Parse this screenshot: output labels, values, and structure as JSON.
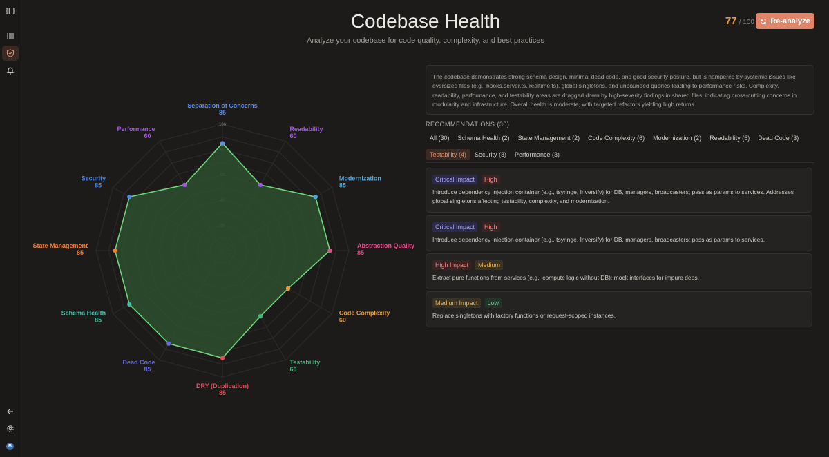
{
  "header": {
    "title": "Codebase Health",
    "subtitle": "Analyze your codebase for code quality, complexity, and best practices",
    "score": "77",
    "score_max": "/ 100",
    "reanalyze_label": "Re-analyze"
  },
  "rail": {
    "icons": [
      "sidebar-toggle-icon",
      "list-icon",
      "shield-icon",
      "bell-icon",
      "arrow-left-icon",
      "gear-icon"
    ],
    "avatar": "B"
  },
  "colors": {
    "accent": "#e0856a",
    "score": "#e49a3a",
    "radar_fill": "#2e4f2f",
    "radar_stroke": "#6fd67c"
  },
  "chart_data": {
    "type": "radar",
    "rlim": [
      0,
      100
    ],
    "ticks": [
      "20",
      "40",
      "60",
      "80",
      "100"
    ],
    "axes": [
      {
        "label": "Separation of Concerns",
        "value": 85,
        "color": "#5b8def"
      },
      {
        "label": "Readability",
        "value": 60,
        "color": "#a25be0"
      },
      {
        "label": "Modernization",
        "value": 85,
        "color": "#4fa9dd"
      },
      {
        "label": "Abstraction Quality",
        "value": 85,
        "color": "#e0508d"
      },
      {
        "label": "Code Complexity",
        "value": 60,
        "color": "#eb9a38"
      },
      {
        "label": "Testability",
        "value": 60,
        "color": "#41b878"
      },
      {
        "label": "DRY (Duplication)",
        "value": 85,
        "color": "#e54b5b"
      },
      {
        "label": "Dead Code",
        "value": 85,
        "color": "#6568e0"
      },
      {
        "label": "Schema Health",
        "value": 85,
        "color": "#3fbfa7"
      },
      {
        "label": "State Management",
        "value": 85,
        "color": "#ee7d34"
      },
      {
        "label": "Security",
        "value": 85,
        "color": "#4e86e6"
      },
      {
        "label": "Performance",
        "value": 60,
        "color": "#a157e0"
      }
    ]
  },
  "summary": "The codebase demonstrates strong schema design, minimal dead code, and good security posture, but is hampered by systemic issues like oversized files (e.g., hooks.server.ts, realtime.ts), global singletons, and unbounded queries leading to performance risks. Complexity, readability, performance, and testability areas are dragged down by high-severity findings in shared files, indicating cross-cutting concerns in modularity and infrastructure. Overall health is moderate, with targeted refactors yielding high returns.",
  "recommendations": {
    "heading": "RECOMMENDATIONS (30)",
    "filters": [
      {
        "label": "All (30)",
        "active": false
      },
      {
        "label": "Schema Health (2)",
        "active": false
      },
      {
        "label": "State Management (2)",
        "active": false
      },
      {
        "label": "Code Complexity (6)",
        "active": false
      },
      {
        "label": "Modernization (2)",
        "active": false
      },
      {
        "label": "Readability (5)",
        "active": false
      },
      {
        "label": "Dead Code (3)",
        "active": false
      },
      {
        "label": "Testability (4)",
        "active": true
      },
      {
        "label": "Security (3)",
        "active": false
      },
      {
        "label": "Performance (3)",
        "active": false
      }
    ],
    "cards": [
      {
        "impact": "Critical Impact",
        "impact_class": "critical",
        "priority": "High",
        "priority_class": "high",
        "text": "Introduce dependency injection container (e.g., tsyringe, Inversify) for DB, managers, broadcasters; pass as params to services. Addresses global singletons affecting testability, complexity, and modernization."
      },
      {
        "impact": "Critical Impact",
        "impact_class": "critical",
        "priority": "High",
        "priority_class": "high",
        "text": "Introduce dependency injection container (e.g., tsyringe, Inversify) for DB, managers, broadcasters; pass as params to services."
      },
      {
        "impact": "High Impact",
        "impact_class": "highimp",
        "priority": "Medium",
        "priority_class": "medium",
        "text": "Extract pure functions from services (e.g., compute logic without DB); mock interfaces for impure deps."
      },
      {
        "impact": "Medium Impact",
        "impact_class": "mediumimp",
        "priority": "Low",
        "priority_class": "low",
        "text": "Replace singletons with factory functions or request-scoped instances."
      }
    ]
  }
}
